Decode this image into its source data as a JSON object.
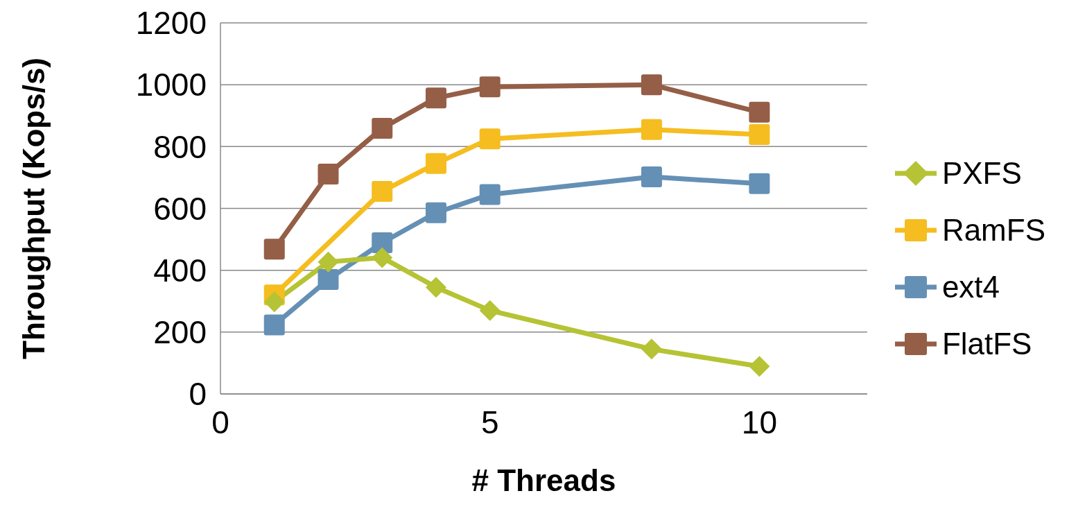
{
  "chart_data": {
    "type": "line",
    "xlabel": "# Threads",
    "ylabel": "Throughput (Kops/s)",
    "x": [
      1,
      2,
      3,
      4,
      5,
      8,
      10
    ],
    "series": [
      {
        "name": "PXFS",
        "color": "#b5c334",
        "marker": "diamond",
        "values": [
          298,
          427,
          441,
          345,
          270,
          145,
          89
        ]
      },
      {
        "name": "RamFS",
        "color": "#f5bd1f",
        "marker": "square",
        "values": [
          320,
          null,
          655,
          745,
          825,
          855,
          839
        ]
      },
      {
        "name": "ext4",
        "color": "#6590b5",
        "marker": "square",
        "values": [
          223,
          370,
          489,
          586,
          645,
          702,
          680
        ]
      },
      {
        "name": "FlatFS",
        "color": "#955e47",
        "marker": "square",
        "values": [
          468,
          711,
          859,
          957,
          993,
          1000,
          911
        ]
      }
    ],
    "xlim": [
      0,
      12
    ],
    "xticks": [
      0,
      5,
      10
    ],
    "ylim": [
      0,
      1200
    ],
    "yticks": [
      0,
      200,
      400,
      600,
      800,
      1000,
      1200
    ],
    "grid": "y",
    "legend": "right"
  }
}
